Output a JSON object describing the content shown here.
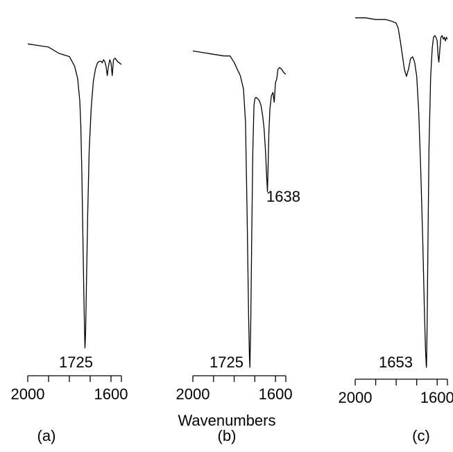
{
  "chart_data": {
    "type": "line",
    "xlabel": "Wavenumbers",
    "panels": [
      {
        "label": "(a)",
        "x_ticks": [
          2000,
          1900,
          1800,
          1700,
          1600,
          1550
        ],
        "x_tick_labels": [
          "2000",
          "1600"
        ],
        "xlim": [
          2000,
          1550
        ],
        "peak_labels": [
          "1725"
        ],
        "peaks": [
          {
            "x": 1725,
            "label": "1725"
          }
        ],
        "x": [
          2000,
          1950,
          1900,
          1850,
          1800,
          1775,
          1760,
          1750,
          1745,
          1740,
          1735,
          1730,
          1727,
          1725,
          1722,
          1718,
          1712,
          1705,
          1695,
          1685,
          1675,
          1665,
          1655,
          1648,
          1642,
          1636,
          1630,
          1624,
          1618,
          1612,
          1606,
          1600,
          1594,
          1588,
          1580,
          1570,
          1560,
          1550
        ],
        "y": [
          0.96,
          0.955,
          0.95,
          0.93,
          0.92,
          0.89,
          0.85,
          0.78,
          0.7,
          0.55,
          0.35,
          0.15,
          0.05,
          0.0,
          0.05,
          0.2,
          0.42,
          0.62,
          0.76,
          0.84,
          0.88,
          0.9,
          0.905,
          0.905,
          0.9,
          0.91,
          0.905,
          0.89,
          0.86,
          0.89,
          0.91,
          0.9,
          0.86,
          0.91,
          0.915,
          0.905,
          0.9,
          0.895
        ]
      },
      {
        "label": "(b)",
        "x_ticks": [
          2000,
          1900,
          1800,
          1700,
          1600,
          1550
        ],
        "x_tick_labels": [
          "2000",
          "1600"
        ],
        "xlim": [
          2000,
          1550
        ],
        "peak_labels": [
          "1725",
          "1638"
        ],
        "peaks": [
          {
            "x": 1725,
            "label": "1725"
          },
          {
            "x": 1638,
            "label": "1638"
          }
        ],
        "x": [
          2000,
          1950,
          1900,
          1850,
          1820,
          1800,
          1785,
          1770,
          1755,
          1745,
          1737,
          1730,
          1726,
          1724,
          1720,
          1715,
          1710,
          1704,
          1700,
          1695,
          1685,
          1678,
          1670,
          1662,
          1655,
          1648,
          1643,
          1639,
          1636,
          1632,
          1627,
          1620,
          1612,
          1606,
          1600,
          1594,
          1588,
          1580,
          1570,
          1560,
          1550
        ],
        "y": [
          0.955,
          0.95,
          0.945,
          0.94,
          0.94,
          0.92,
          0.9,
          0.88,
          0.84,
          0.74,
          0.45,
          0.15,
          0.03,
          0.0,
          0.12,
          0.4,
          0.65,
          0.79,
          0.81,
          0.815,
          0.81,
          0.805,
          0.79,
          0.76,
          0.72,
          0.65,
          0.58,
          0.53,
          0.6,
          0.71,
          0.78,
          0.82,
          0.83,
          0.8,
          0.86,
          0.87,
          0.9,
          0.905,
          0.9,
          0.89,
          0.885
        ]
      },
      {
        "label": "(c)",
        "x_ticks": [
          2000,
          1900,
          1800,
          1700,
          1600,
          1550
        ],
        "x_tick_labels": [
          "2000",
          "1600"
        ],
        "xlim": [
          2000,
          1550
        ],
        "peak_labels": [
          "1653"
        ],
        "peaks": [
          {
            "x": 1653,
            "label": "1653"
          }
        ],
        "x": [
          2000,
          1950,
          1900,
          1850,
          1820,
          1800,
          1790,
          1780,
          1770,
          1760,
          1750,
          1740,
          1730,
          1720,
          1710,
          1700,
          1690,
          1680,
          1670,
          1662,
          1657,
          1654,
          1653,
          1652,
          1649,
          1645,
          1640,
          1632,
          1624,
          1618,
          1612,
          1606,
          1600,
          1596,
          1592,
          1588,
          1582,
          1576,
          1570,
          1565,
          1560,
          1555,
          1550
        ],
        "y": [
          0.985,
          0.985,
          0.98,
          0.98,
          0.975,
          0.97,
          0.955,
          0.92,
          0.88,
          0.84,
          0.82,
          0.84,
          0.87,
          0.875,
          0.86,
          0.82,
          0.72,
          0.55,
          0.35,
          0.15,
          0.05,
          0.01,
          0.0,
          0.01,
          0.12,
          0.35,
          0.62,
          0.82,
          0.9,
          0.93,
          0.935,
          0.93,
          0.92,
          0.88,
          0.86,
          0.89,
          0.93,
          0.935,
          0.925,
          0.93,
          0.92,
          0.93,
          0.925
        ]
      }
    ]
  }
}
